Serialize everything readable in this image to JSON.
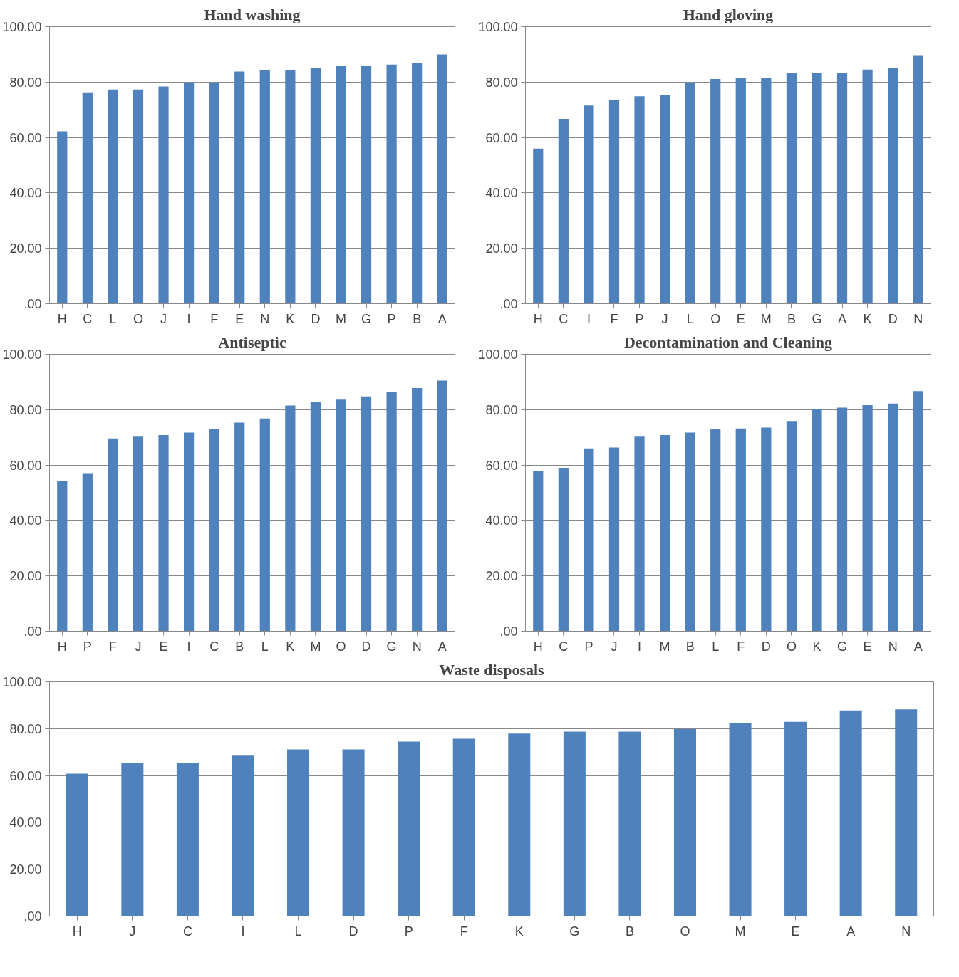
{
  "chart_data": [
    {
      "type": "bar",
      "title": "Hand washing",
      "categories": [
        "H",
        "C",
        "L",
        "O",
        "J",
        "I",
        "F",
        "E",
        "N",
        "K",
        "D",
        "M",
        "G",
        "P",
        "B",
        "A"
      ],
      "values": [
        62.2,
        76.3,
        77.3,
        77.3,
        78.4,
        79.7,
        79.7,
        83.8,
        84.2,
        84.2,
        85.2,
        85.9,
        85.9,
        86.3,
        86.9,
        90.0
      ],
      "color": "#4f81bd",
      "ylim": [
        0,
        100
      ],
      "yticks": [
        {
          "value": 0,
          "label": ".00"
        },
        {
          "value": 20,
          "label": "20.00"
        },
        {
          "value": 40,
          "label": "40.00"
        },
        {
          "value": 60,
          "label": "60.00"
        },
        {
          "value": 80,
          "label": "80.00"
        },
        {
          "value": 100,
          "label": "100.00"
        }
      ],
      "grid": "y"
    },
    {
      "type": "bar",
      "title": "Hand gloving",
      "categories": [
        "H",
        "C",
        "I",
        "F",
        "P",
        "J",
        "L",
        "O",
        "E",
        "M",
        "B",
        "G",
        "A",
        "K",
        "D",
        "N"
      ],
      "values": [
        56.0,
        66.7,
        71.5,
        73.5,
        74.9,
        75.3,
        79.7,
        81.1,
        81.4,
        81.4,
        83.2,
        83.2,
        83.2,
        84.5,
        85.2,
        89.7
      ],
      "color": "#4f81bd",
      "ylim": [
        0,
        100
      ],
      "yticks": [
        {
          "value": 0,
          "label": ".00"
        },
        {
          "value": 20,
          "label": "20.00"
        },
        {
          "value": 40,
          "label": "40.00"
        },
        {
          "value": 60,
          "label": "60.00"
        },
        {
          "value": 80,
          "label": "80.00"
        },
        {
          "value": 100,
          "label": "100.00"
        }
      ],
      "grid": "y"
    },
    {
      "type": "bar",
      "title": "Antiseptic",
      "categories": [
        "H",
        "P",
        "F",
        "J",
        "E",
        "I",
        "C",
        "B",
        "L",
        "K",
        "M",
        "O",
        "D",
        "G",
        "N",
        "A"
      ],
      "values": [
        54.2,
        57.1,
        69.6,
        70.5,
        70.8,
        71.7,
        72.9,
        75.3,
        76.8,
        81.5,
        82.7,
        83.6,
        84.8,
        86.3,
        87.8,
        90.5
      ],
      "color": "#4f81bd",
      "ylim": [
        0,
        100
      ],
      "yticks": [
        {
          "value": 0,
          "label": ".00"
        },
        {
          "value": 20,
          "label": "20.00"
        },
        {
          "value": 40,
          "label": "40.00"
        },
        {
          "value": 60,
          "label": "60.00"
        },
        {
          "value": 80,
          "label": "80.00"
        },
        {
          "value": 100,
          "label": "100.00"
        }
      ],
      "grid": "y"
    },
    {
      "type": "bar",
      "title": "Decontamination and Cleaning",
      "categories": [
        "H",
        "C",
        "P",
        "J",
        "I",
        "M",
        "B",
        "L",
        "F",
        "D",
        "O",
        "K",
        "G",
        "E",
        "N",
        "A"
      ],
      "values": [
        57.8,
        59.0,
        66.0,
        66.3,
        70.5,
        70.8,
        71.7,
        72.9,
        73.2,
        73.5,
        75.9,
        80.1,
        80.7,
        81.6,
        82.2,
        86.7
      ],
      "color": "#4f81bd",
      "ylim": [
        0,
        100
      ],
      "yticks": [
        {
          "value": 0,
          "label": ".00"
        },
        {
          "value": 20,
          "label": "20.00"
        },
        {
          "value": 40,
          "label": "40.00"
        },
        {
          "value": 60,
          "label": "60.00"
        },
        {
          "value": 80,
          "label": "80.00"
        },
        {
          "value": 100,
          "label": "100.00"
        }
      ],
      "grid": "y"
    },
    {
      "type": "bar",
      "title": "Waste disposals",
      "categories": [
        "H",
        "J",
        "C",
        "I",
        "L",
        "D",
        "P",
        "F",
        "K",
        "G",
        "B",
        "O",
        "M",
        "E",
        "A",
        "N"
      ],
      "values": [
        60.8,
        65.4,
        65.4,
        68.8,
        71.1,
        71.1,
        74.5,
        75.7,
        77.9,
        78.7,
        78.7,
        79.8,
        82.5,
        82.9,
        87.8,
        88.2
      ],
      "color": "#4f81bd",
      "ylim": [
        0,
        100
      ],
      "yticks": [
        {
          "value": 0,
          "label": ".00"
        },
        {
          "value": 20,
          "label": "20.00"
        },
        {
          "value": 40,
          "label": "40.00"
        },
        {
          "value": 60,
          "label": "60.00"
        },
        {
          "value": 80,
          "label": "80.00"
        },
        {
          "value": 100,
          "label": "100.00"
        }
      ],
      "grid": "y"
    }
  ]
}
